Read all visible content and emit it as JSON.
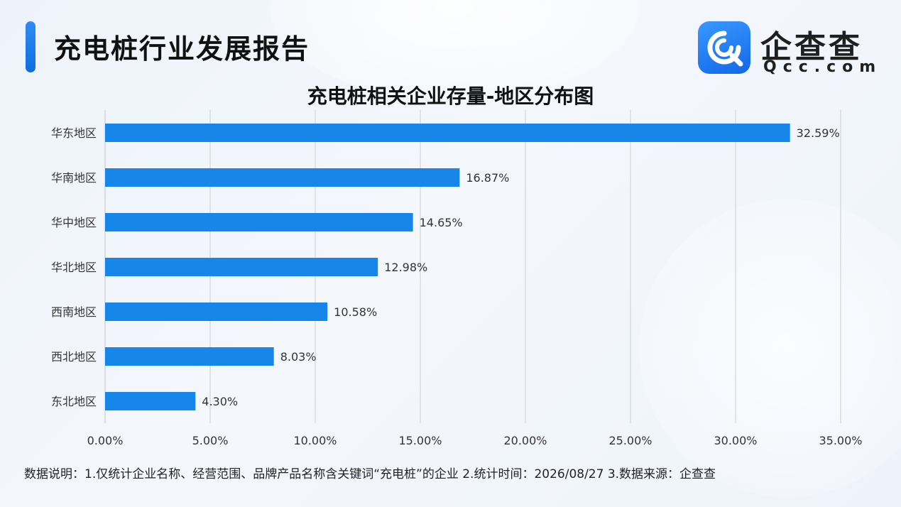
{
  "header": {
    "report_title": "充电桩行业发展报告",
    "logo_text": "企查查",
    "logo_sub": "Qcc.com"
  },
  "chart_data": {
    "type": "bar",
    "orientation": "horizontal",
    "title": "充电桩相关企业存量-地区分布图",
    "categories": [
      "华东地区",
      "华南地区",
      "华中地区",
      "华北地区",
      "西南地区",
      "西北地区",
      "东北地区"
    ],
    "values": [
      32.59,
      16.87,
      14.65,
      12.98,
      10.58,
      8.03,
      4.3
    ],
    "data_labels": [
      "32.59%",
      "16.87%",
      "14.65%",
      "12.98%",
      "10.58%",
      "8.03%",
      "4.30%"
    ],
    "x_ticks": [
      "0.00%",
      "5.00%",
      "10.00%",
      "15.00%",
      "20.00%",
      "25.00%",
      "30.00%",
      "35.00%"
    ],
    "xlim": [
      0,
      35
    ],
    "xlabel": "",
    "ylabel": "",
    "grid": "vertical",
    "legend": "none",
    "bar_color": "#1686ea"
  },
  "footnote": "数据说明：1.仅统计企业名称、经营范围、品牌产品名称含关键词“充电桩”的企业   2.统计时间：2026/08/27   3.数据来源：企查查",
  "colors": {
    "accent": "#1677e8",
    "grid": "#c9ced6"
  }
}
